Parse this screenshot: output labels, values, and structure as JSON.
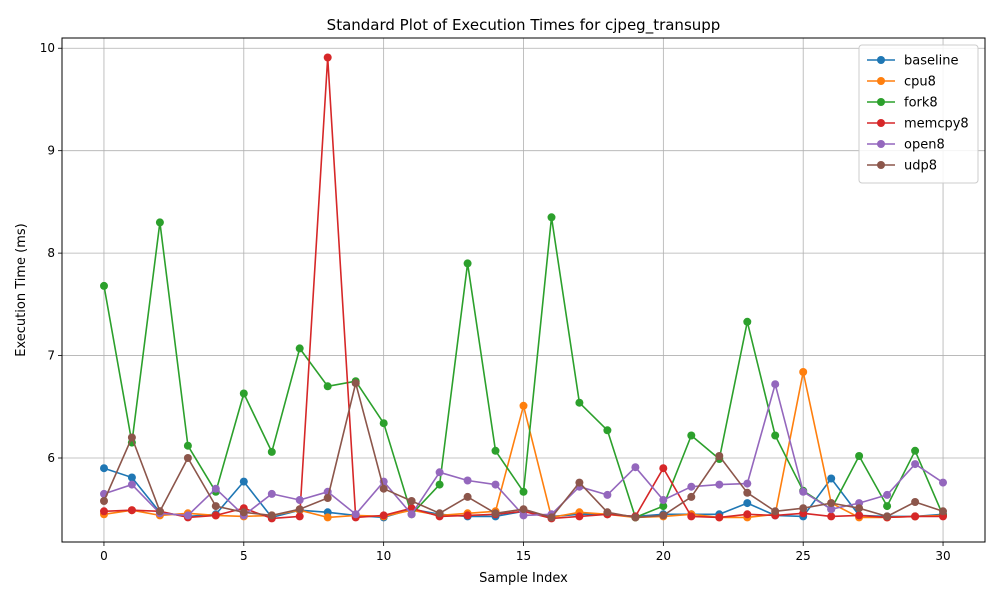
{
  "chart_data": {
    "type": "line",
    "title": "Standard Plot of Execution Times for cjpeg_transupp",
    "xlabel": "Sample Index",
    "ylabel": "Execution Time (ms)",
    "xlim": [
      -1.5,
      31.5
    ],
    "ylim": [
      5.18,
      10.1
    ],
    "xticks": [
      0,
      5,
      10,
      15,
      20,
      25,
      30
    ],
    "yticks": [
      6,
      7,
      8,
      9,
      10
    ],
    "grid": true,
    "legend_position": "top-right",
    "x": [
      0,
      1,
      2,
      3,
      4,
      5,
      6,
      7,
      8,
      9,
      10,
      11,
      12,
      13,
      14,
      15,
      16,
      17,
      18,
      19,
      20,
      21,
      22,
      23,
      24,
      25,
      26,
      27,
      28,
      29,
      30
    ],
    "series": [
      {
        "name": "baseline",
        "color": "#1f77b4",
        "values": [
          5.9,
          5.81,
          5.47,
          5.43,
          5.45,
          5.77,
          5.42,
          5.49,
          5.47,
          5.44,
          5.42,
          5.5,
          5.45,
          5.43,
          5.43,
          5.48,
          5.43,
          5.45,
          5.45,
          5.43,
          5.45,
          5.45,
          5.45,
          5.56,
          5.44,
          5.43,
          5.8,
          5.44,
          5.43,
          5.43,
          5.45
        ]
      },
      {
        "name": "cpu8",
        "color": "#ff7f0e",
        "values": [
          5.45,
          5.49,
          5.44,
          5.46,
          5.44,
          5.43,
          5.44,
          5.49,
          5.42,
          5.44,
          5.43,
          5.49,
          5.44,
          5.46,
          5.48,
          6.51,
          5.42,
          5.47,
          5.45,
          5.42,
          5.43,
          5.45,
          5.42,
          5.42,
          5.45,
          6.84,
          5.56,
          5.42,
          5.42,
          5.43,
          5.44
        ]
      },
      {
        "name": "fork8",
        "color": "#2ca02c",
        "values": [
          7.68,
          6.15,
          8.3,
          6.12,
          5.67,
          6.63,
          6.06,
          7.07,
          6.7,
          6.75,
          6.34,
          5.45,
          5.74,
          7.9,
          6.07,
          5.67,
          8.35,
          6.54,
          6.27,
          5.42,
          5.53,
          6.22,
          5.99,
          7.33,
          6.22,
          5.68,
          5.5,
          6.02,
          5.53,
          6.07,
          5.44
        ]
      },
      {
        "name": "memcpy8",
        "color": "#d62728",
        "values": [
          5.48,
          5.49,
          5.48,
          5.42,
          5.44,
          5.51,
          5.41,
          5.43,
          9.91,
          5.42,
          5.44,
          5.51,
          5.43,
          5.44,
          5.45,
          5.48,
          5.41,
          5.43,
          5.45,
          5.43,
          5.9,
          5.43,
          5.42,
          5.45,
          5.44,
          5.46,
          5.43,
          5.44,
          5.42,
          5.43,
          5.43
        ]
      },
      {
        "name": "open8",
        "color": "#9467bd",
        "values": [
          5.65,
          5.74,
          5.46,
          5.44,
          5.7,
          5.44,
          5.65,
          5.59,
          5.67,
          5.45,
          5.77,
          5.45,
          5.86,
          5.78,
          5.74,
          5.44,
          5.45,
          5.72,
          5.64,
          5.91,
          5.59,
          5.72,
          5.74,
          5.75,
          6.72,
          5.67,
          5.5,
          5.56,
          5.64,
          5.94,
          5.76
        ]
      },
      {
        "name": "udp8",
        "color": "#8c564b",
        "values": [
          5.58,
          6.2,
          5.48,
          6.0,
          5.53,
          5.47,
          5.44,
          5.5,
          5.61,
          6.73,
          5.7,
          5.58,
          5.46,
          5.62,
          5.46,
          5.5,
          5.42,
          5.76,
          5.47,
          5.42,
          5.44,
          5.62,
          6.02,
          5.66,
          5.48,
          5.51,
          5.56,
          5.51,
          5.43,
          5.57,
          5.48
        ]
      }
    ]
  }
}
